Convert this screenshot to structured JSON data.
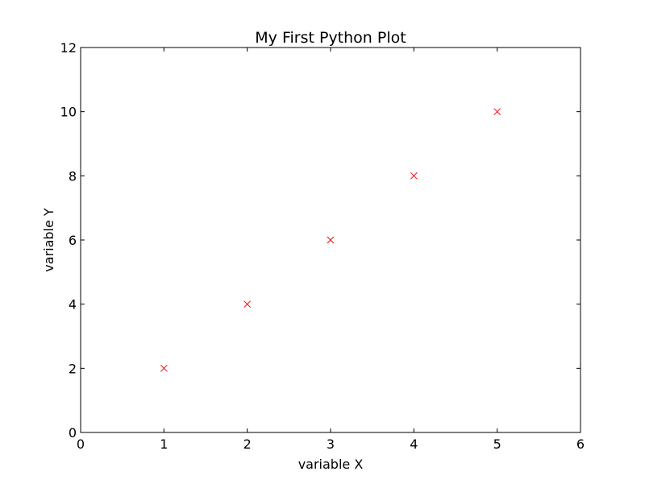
{
  "chart_data": {
    "type": "scatter",
    "title": "My First Python Plot",
    "xlabel": "variable X",
    "ylabel": "variable Y",
    "xlim": [
      0,
      6
    ],
    "ylim": [
      0,
      12
    ],
    "xticks": [
      "0",
      "1",
      "2",
      "3",
      "4",
      "5",
      "6"
    ],
    "yticks": [
      "0",
      "2",
      "4",
      "6",
      "8",
      "10",
      "12"
    ],
    "grid": false,
    "series": [
      {
        "marker": "x",
        "color": "#ff0000",
        "x": [
          1,
          2,
          3,
          4,
          5
        ],
        "y": [
          2,
          4,
          6,
          8,
          10
        ]
      }
    ]
  }
}
